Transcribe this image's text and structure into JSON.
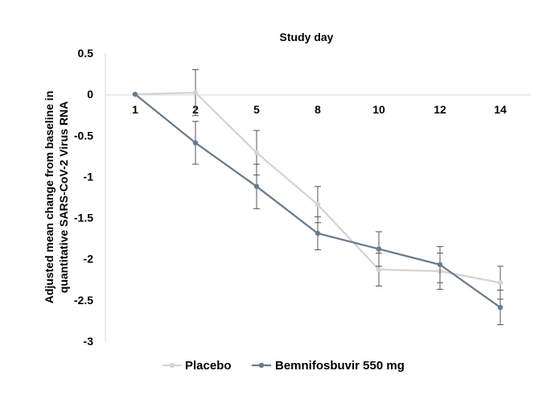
{
  "chart_data": {
    "type": "line",
    "title": "",
    "xlabel": "Study day",
    "ylabel_lines": [
      "Adjusted mean change from baseline in",
      "quantitative SARS-CoV-2 Virus RNA"
    ],
    "categories": [
      "1",
      "2",
      "5",
      "8",
      "10",
      "12",
      "14"
    ],
    "ylim": [
      -3,
      0.5
    ],
    "yticks": [
      0.5,
      0,
      -0.5,
      -1,
      -1.5,
      -2,
      -2.5,
      -3
    ],
    "ytick_labels": [
      "0.5",
      "0",
      "-0.5",
      "-1",
      "-1.5",
      "-2",
      "-2.5",
      "-3"
    ],
    "grid": false,
    "legend_position": "bottom",
    "series": [
      {
        "name": "Placebo",
        "color": "#d4d4d4",
        "values": [
          0,
          0.02,
          -0.71,
          -1.34,
          -2.13,
          -2.15,
          -2.29
        ],
        "err": [
          0,
          0.28,
          0.27,
          0.22,
          0.2,
          0.22,
          0.2
        ]
      },
      {
        "name": "Bemnifosbuvir 550 mg",
        "color": "#6b7a88",
        "values": [
          0,
          -0.59,
          -1.12,
          -1.69,
          -1.88,
          -2.07,
          -2.59
        ],
        "err": [
          0,
          0.26,
          0.27,
          0.2,
          0.21,
          0.22,
          0.21
        ]
      }
    ]
  }
}
